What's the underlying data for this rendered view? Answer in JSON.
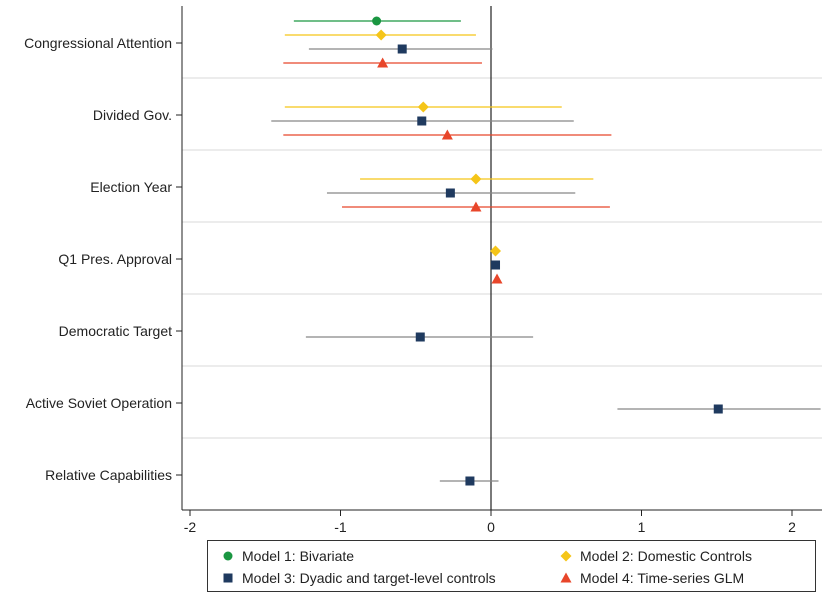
{
  "chart_data": {
    "type": "scatter",
    "subtype": "coefficient-plot",
    "title": "",
    "xlabel": "",
    "ylabel": "",
    "xlim": [
      -2.05,
      2.2
    ],
    "xticks": [
      -2,
      -1,
      0,
      1,
      2
    ],
    "xtick_labels": [
      "-2",
      "-1",
      "0",
      "1",
      "2"
    ],
    "reference_line_x": 0,
    "categories": [
      "Congressional Attention",
      "Divided Gov.",
      "Election Year",
      "Q1 Pres. Approval",
      "Democratic Target",
      "Active Soviet Operation",
      "Relative Capabilities"
    ],
    "series": [
      {
        "name": "Model 1: Bivariate",
        "marker": "circle",
        "color": "#1a9641",
        "points": [
          {
            "category": "Congressional Attention",
            "estimate": -0.76,
            "ci_low": -1.31,
            "ci_high": -0.2
          }
        ]
      },
      {
        "name": "Model 2: Domestic Controls",
        "marker": "diamond",
        "color": "#f5c518",
        "points": [
          {
            "category": "Congressional Attention",
            "estimate": -0.73,
            "ci_low": -1.37,
            "ci_high": -0.1
          },
          {
            "category": "Divided Gov.",
            "estimate": -0.45,
            "ci_low": -1.37,
            "ci_high": 0.47
          },
          {
            "category": "Election Year",
            "estimate": -0.1,
            "ci_low": -0.87,
            "ci_high": 0.68
          },
          {
            "category": "Q1 Pres. Approval",
            "estimate": 0.03,
            "ci_low": 0.02,
            "ci_high": 0.04
          }
        ]
      },
      {
        "name": "Model 3: Dyadic and target-level controls",
        "marker": "square",
        "color": "#1f3a5f",
        "line_color": "#888888",
        "points": [
          {
            "category": "Congressional Attention",
            "estimate": -0.59,
            "ci_low": -1.21,
            "ci_high": 0.01
          },
          {
            "category": "Divided Gov.",
            "estimate": -0.46,
            "ci_low": -1.46,
            "ci_high": 0.55
          },
          {
            "category": "Election Year",
            "estimate": -0.27,
            "ci_low": -1.09,
            "ci_high": 0.56
          },
          {
            "category": "Q1 Pres. Approval",
            "estimate": 0.03,
            "ci_low": 0.02,
            "ci_high": 0.04
          },
          {
            "category": "Democratic Target",
            "estimate": -0.47,
            "ci_low": -1.23,
            "ci_high": 0.28
          },
          {
            "category": "Active Soviet Operation",
            "estimate": 1.51,
            "ci_low": 0.84,
            "ci_high": 2.19
          },
          {
            "category": "Relative Capabilities",
            "estimate": -0.14,
            "ci_low": -0.34,
            "ci_high": 0.05
          }
        ]
      },
      {
        "name": "Model 4: Time-series GLM",
        "marker": "triangle",
        "color": "#e8462a",
        "points": [
          {
            "category": "Congressional Attention",
            "estimate": -0.72,
            "ci_low": -1.38,
            "ci_high": -0.06
          },
          {
            "category": "Divided Gov.",
            "estimate": -0.29,
            "ci_low": -1.38,
            "ci_high": 0.8
          },
          {
            "category": "Election Year",
            "estimate": -0.1,
            "ci_low": -0.99,
            "ci_high": 0.79
          },
          {
            "category": "Q1 Pres. Approval",
            "estimate": 0.04,
            "ci_low": 0.03,
            "ci_high": 0.05
          }
        ]
      }
    ],
    "legend": {
      "position": "bottom",
      "columns": 2
    },
    "grid": {
      "x": false,
      "y_separators": true
    }
  }
}
